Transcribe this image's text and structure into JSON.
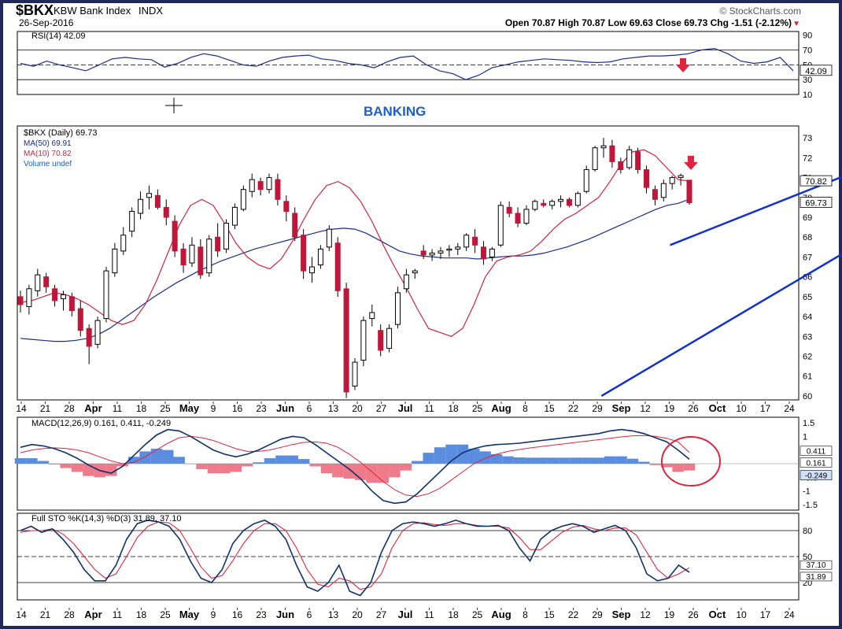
{
  "header": {
    "symbol": "$BKX",
    "name": "KBW Bank Index",
    "exchange": "INDX",
    "date": "26-Sep-2016",
    "ohlc": "Open 70.87   High 70.87   Low 69.63   Close 69.73   Chg -1.51 (-2.12%)",
    "watermark": "© StockCharts.com",
    "change_marker": "▼"
  },
  "annotations": {
    "banking": "BANKING"
  },
  "colors": {
    "panel_bg": "#ffffff",
    "frame": "#1f2a5a",
    "up_candle": "#ffffff",
    "down_candle": "#c0163a",
    "ma50": "#1b2c8a",
    "ma10": "#d0243f",
    "trendline": "#1030d0",
    "macd_line": "#10306a",
    "signal_line": "#e0243f",
    "hist_pos": "#5a8de0",
    "hist_neg": "#ee7a8a",
    "circle": "#e0243f",
    "arrow": "#e0243f",
    "banking_text": "#1a5fd0"
  },
  "chart_data": [
    {
      "type": "line",
      "panel": "rsi",
      "legend": "RSI(14) 42.09",
      "y_ticks": [
        10,
        30,
        50,
        70,
        90
      ],
      "levels": [
        30,
        50,
        70
      ],
      "last_label": "42.09",
      "ylim": [
        10,
        95
      ],
      "values": [
        52,
        48,
        55,
        50,
        46,
        42,
        50,
        58,
        60,
        58,
        57,
        47,
        52,
        60,
        65,
        62,
        56,
        50,
        48,
        55,
        60,
        62,
        63,
        58,
        56,
        52,
        50,
        46,
        54,
        60,
        62,
        50,
        42,
        38,
        30,
        36,
        46,
        50,
        54,
        56,
        58,
        57,
        56,
        54,
        53,
        54,
        58,
        60,
        62,
        62,
        63,
        65,
        70,
        72,
        65,
        55,
        52,
        54,
        60,
        42
      ]
    },
    {
      "type": "candlestick",
      "panel": "price",
      "legend": [
        "$BKX (Daily) 69.73",
        "MA(50) 69.91",
        "MA(10) 70.82",
        "Volume undef"
      ],
      "y_ticks": [
        60,
        61,
        62,
        63,
        64,
        65,
        66,
        67,
        68,
        69,
        70,
        71,
        72,
        73
      ],
      "ylim": [
        59.8,
        73.6
      ],
      "right_labels": {
        "ma10": "70.82",
        "close": "69.73"
      },
      "candles": [
        [
          65.0,
          65.3,
          64.2,
          64.6
        ],
        [
          64.5,
          65.6,
          64.1,
          65.4
        ],
        [
          65.3,
          66.4,
          65.0,
          66.1
        ],
        [
          66.0,
          66.2,
          65.2,
          65.5
        ],
        [
          65.4,
          65.6,
          64.5,
          64.8
        ],
        [
          64.9,
          65.3,
          64.3,
          65.1
        ],
        [
          65.0,
          65.2,
          64.0,
          64.3
        ],
        [
          64.4,
          64.8,
          63.0,
          63.3
        ],
        [
          63.4,
          63.6,
          61.6,
          62.5
        ],
        [
          62.6,
          64.0,
          62.4,
          63.8
        ],
        [
          63.9,
          66.5,
          63.7,
          66.3
        ],
        [
          66.2,
          67.7,
          66.0,
          67.4
        ],
        [
          67.3,
          68.5,
          67.1,
          68.1
        ],
        [
          68.3,
          69.5,
          68.0,
          69.3
        ],
        [
          69.2,
          70.3,
          68.9,
          69.9
        ],
        [
          70.0,
          70.6,
          69.4,
          70.2
        ],
        [
          70.1,
          70.4,
          69.4,
          69.5
        ],
        [
          69.5,
          69.9,
          68.6,
          69.0
        ],
        [
          68.8,
          69.1,
          67.0,
          67.3
        ],
        [
          67.4,
          67.7,
          66.2,
          66.6
        ],
        [
          66.7,
          68.0,
          66.5,
          67.6
        ],
        [
          67.5,
          67.9,
          65.9,
          66.1
        ],
        [
          66.2,
          68.1,
          66.0,
          67.9
        ],
        [
          68.0,
          68.7,
          67.0,
          67.3
        ],
        [
          67.4,
          68.9,
          67.2,
          68.7
        ],
        [
          68.6,
          69.7,
          68.4,
          69.5
        ],
        [
          69.4,
          70.6,
          69.3,
          70.4
        ],
        [
          70.3,
          71.2,
          70.0,
          70.9
        ],
        [
          70.8,
          71.0,
          70.1,
          70.4
        ],
        [
          70.4,
          71.2,
          70.2,
          71.0
        ],
        [
          70.9,
          71.2,
          69.6,
          69.9
        ],
        [
          69.8,
          70.1,
          68.8,
          69.3
        ],
        [
          69.2,
          69.5,
          67.8,
          68.0
        ],
        [
          68.1,
          68.4,
          65.9,
          66.3
        ],
        [
          66.2,
          67.0,
          65.7,
          66.5
        ],
        [
          66.6,
          67.6,
          66.4,
          67.4
        ],
        [
          67.5,
          68.6,
          67.3,
          68.4
        ],
        [
          67.7,
          68.0,
          65.0,
          65.3
        ],
        [
          65.4,
          65.7,
          59.9,
          60.2
        ],
        [
          60.5,
          61.9,
          60.3,
          61.7
        ],
        [
          61.8,
          64.0,
          61.5,
          63.8
        ],
        [
          63.9,
          64.6,
          63.5,
          64.2
        ],
        [
          63.3,
          63.6,
          62.0,
          62.3
        ],
        [
          62.4,
          63.6,
          62.2,
          63.4
        ],
        [
          63.6,
          65.5,
          63.4,
          65.2
        ],
        [
          65.4,
          66.4,
          65.2,
          66.1
        ],
        [
          66.2,
          66.4,
          65.9,
          66.3
        ],
        [
          67.3,
          67.6,
          66.9,
          67.1
        ],
        [
          67.1,
          67.4,
          66.8,
          67.2
        ],
        [
          67.2,
          67.5,
          66.9,
          67.3
        ],
        [
          67.4,
          67.6,
          67.0,
          67.4
        ],
        [
          67.4,
          67.7,
          67.1,
          67.5
        ],
        [
          67.5,
          68.2,
          67.3,
          68.1
        ],
        [
          68.0,
          68.4,
          67.2,
          67.6
        ],
        [
          67.5,
          67.8,
          66.6,
          66.9
        ],
        [
          67.0,
          67.5,
          66.8,
          67.4
        ],
        [
          67.6,
          69.8,
          67.5,
          69.6
        ],
        [
          69.5,
          69.8,
          69.0,
          69.2
        ],
        [
          69.2,
          69.5,
          68.5,
          68.7
        ],
        [
          68.7,
          69.6,
          68.6,
          69.4
        ],
        [
          69.4,
          69.9,
          69.3,
          69.8
        ],
        [
          69.7,
          69.9,
          69.5,
          69.6
        ],
        [
          69.6,
          69.9,
          69.4,
          69.8
        ],
        [
          69.8,
          70.1,
          69.5,
          69.9
        ],
        [
          69.9,
          70.0,
          69.5,
          69.6
        ],
        [
          69.6,
          70.3,
          69.5,
          70.2
        ],
        [
          70.3,
          71.6,
          70.2,
          71.4
        ],
        [
          71.4,
          72.6,
          71.3,
          72.5
        ],
        [
          72.5,
          73.0,
          72.0,
          72.6
        ],
        [
          72.6,
          72.9,
          71.5,
          71.8
        ],
        [
          71.8,
          72.0,
          71.2,
          71.4
        ],
        [
          71.5,
          72.6,
          71.4,
          72.4
        ],
        [
          72.3,
          72.5,
          71.2,
          71.4
        ],
        [
          71.4,
          71.6,
          70.2,
          70.5
        ],
        [
          70.4,
          70.6,
          69.6,
          69.9
        ],
        [
          70.0,
          70.9,
          69.8,
          70.7
        ],
        [
          70.7,
          71.1,
          70.4,
          71.0
        ],
        [
          71.0,
          71.2,
          70.6,
          71.1
        ],
        [
          70.87,
          70.87,
          69.63,
          69.73
        ]
      ],
      "ma50": [
        62.9,
        62.85,
        62.8,
        62.75,
        62.75,
        62.8,
        62.9,
        63.1,
        63.4,
        63.8,
        64.2,
        64.6,
        65.0,
        65.35,
        65.7,
        66.0,
        66.3,
        66.55,
        66.8,
        67.0,
        67.2,
        67.4,
        67.55,
        67.7,
        67.85,
        68.0,
        68.15,
        68.3,
        68.4,
        68.45,
        68.4,
        68.2,
        67.9,
        67.6,
        67.3,
        67.15,
        67.05,
        67.0,
        66.95,
        66.95,
        66.95,
        66.9,
        66.95,
        67.0,
        67.05,
        67.05,
        67.1,
        67.2,
        67.35,
        67.5,
        67.7,
        67.9,
        68.15,
        68.4,
        68.65,
        68.9,
        69.15,
        69.4,
        69.6,
        69.7,
        69.91
      ],
      "ma10": [
        64.7,
        64.8,
        65.0,
        65.2,
        65.1,
        64.9,
        64.6,
        64.2,
        63.8,
        63.6,
        63.8,
        64.6,
        65.8,
        67.2,
        68.6,
        69.6,
        69.9,
        69.6,
        68.7,
        67.7,
        67.0,
        66.6,
        66.4,
        66.9,
        67.8,
        68.9,
        69.9,
        70.6,
        70.8,
        70.5,
        69.8,
        68.8,
        67.6,
        66.5,
        65.5,
        64.4,
        63.4,
        63.2,
        63.0,
        63.4,
        64.6,
        66.0,
        66.8,
        67.0,
        67.1,
        67.3,
        67.8,
        68.4,
        68.9,
        69.2,
        69.6,
        70.0,
        70.8,
        71.7,
        72.3,
        72.4,
        72.1,
        71.5,
        70.9,
        70.82
      ],
      "trendlines": [
        {
          "from": [
            26,
            60.0
          ],
          "to": [
            77,
            73.0
          ]
        },
        {
          "from": [
            34,
            67.6
          ],
          "to": [
            83,
            76.0
          ]
        }
      ]
    },
    {
      "type": "line",
      "panel": "macd",
      "legend": "MACD(12,26,9) 0.161, 0.411, -0.249",
      "y_ticks": [
        -1.5,
        -1.0,
        -0.5,
        0.5,
        1.0,
        1.5
      ],
      "ylim": [
        -1.7,
        1.7
      ],
      "right_labels": [
        "0.411",
        "0.161",
        "-0.249"
      ],
      "macd": [
        0.6,
        0.7,
        0.65,
        0.55,
        0.4,
        0.2,
        -0.05,
        -0.25,
        -0.35,
        -0.1,
        0.3,
        0.7,
        1.05,
        1.25,
        1.2,
        1.0,
        0.75,
        0.5,
        0.35,
        0.25,
        0.35,
        0.5,
        0.7,
        0.9,
        1.0,
        0.95,
        0.7,
        0.4,
        0.1,
        -0.2,
        -0.55,
        -1.0,
        -1.35,
        -1.45,
        -1.4,
        -1.1,
        -0.7,
        -0.3,
        0.1,
        0.4,
        0.55,
        0.65,
        0.7,
        0.72,
        0.75,
        0.8,
        0.85,
        0.9,
        0.95,
        1.0,
        1.05,
        1.1,
        1.2,
        1.25,
        1.2,
        1.1,
        0.95,
        0.8,
        0.5,
        0.161
      ],
      "signal": [
        0.4,
        0.5,
        0.55,
        0.58,
        0.56,
        0.5,
        0.4,
        0.25,
        0.1,
        0.0,
        0.05,
        0.25,
        0.5,
        0.75,
        0.95,
        1.0,
        0.95,
        0.85,
        0.7,
        0.55,
        0.45,
        0.45,
        0.5,
        0.6,
        0.7,
        0.78,
        0.8,
        0.75,
        0.6,
        0.35,
        0.05,
        -0.3,
        -0.65,
        -0.95,
        -1.15,
        -1.2,
        -1.1,
        -0.9,
        -0.6,
        -0.3,
        0.0,
        0.2,
        0.35,
        0.45,
        0.52,
        0.58,
        0.63,
        0.68,
        0.73,
        0.78,
        0.83,
        0.88,
        0.93,
        0.98,
        1.02,
        1.03,
        1.0,
        0.93,
        0.8,
        0.411
      ]
    },
    {
      "type": "line",
      "panel": "sto",
      "legend": "Full STO %K(14,3) %D(3) 31.89, 37.10",
      "y_ticks": [
        20,
        50,
        80
      ],
      "levels": [
        20,
        50,
        80
      ],
      "ylim": [
        0,
        100
      ],
      "right_labels": [
        "37.10",
        "31.89"
      ],
      "k": [
        80,
        85,
        78,
        82,
        70,
        55,
        35,
        22,
        22,
        40,
        70,
        88,
        92,
        90,
        85,
        70,
        45,
        25,
        20,
        35,
        65,
        80,
        88,
        92,
        85,
        70,
        40,
        15,
        10,
        20,
        40,
        10,
        5,
        20,
        55,
        80,
        88,
        90,
        88,
        85,
        88,
        92,
        88,
        85,
        85,
        86,
        80,
        60,
        45,
        70,
        80,
        85,
        88,
        85,
        78,
        82,
        86,
        80,
        60,
        30,
        22,
        25,
        40,
        31.89
      ],
      "d": [
        78,
        80,
        80,
        82,
        76,
        65,
        50,
        35,
        25,
        30,
        50,
        72,
        85,
        90,
        89,
        80,
        60,
        38,
        25,
        28,
        45,
        65,
        80,
        88,
        88,
        80,
        60,
        35,
        18,
        15,
        25,
        22,
        12,
        15,
        30,
        60,
        80,
        88,
        89,
        87,
        86,
        88,
        88,
        86,
        85,
        85,
        83,
        72,
        58,
        58,
        68,
        78,
        84,
        86,
        82,
        80,
        83,
        83,
        75,
        55,
        35,
        25,
        30,
        37.1
      ]
    }
  ],
  "x_axis": {
    "labels": [
      "14",
      "21",
      "28",
      "Apr",
      "11",
      "18",
      "25",
      "May",
      "9",
      "16",
      "23",
      "Jun",
      "6",
      "13",
      "20",
      "27",
      "Jul",
      "11",
      "18",
      "25",
      "Aug",
      "8",
      "15",
      "22",
      "29",
      "Sep",
      "12",
      "19",
      "26",
      "Oct",
      "10",
      "17",
      "24"
    ]
  }
}
